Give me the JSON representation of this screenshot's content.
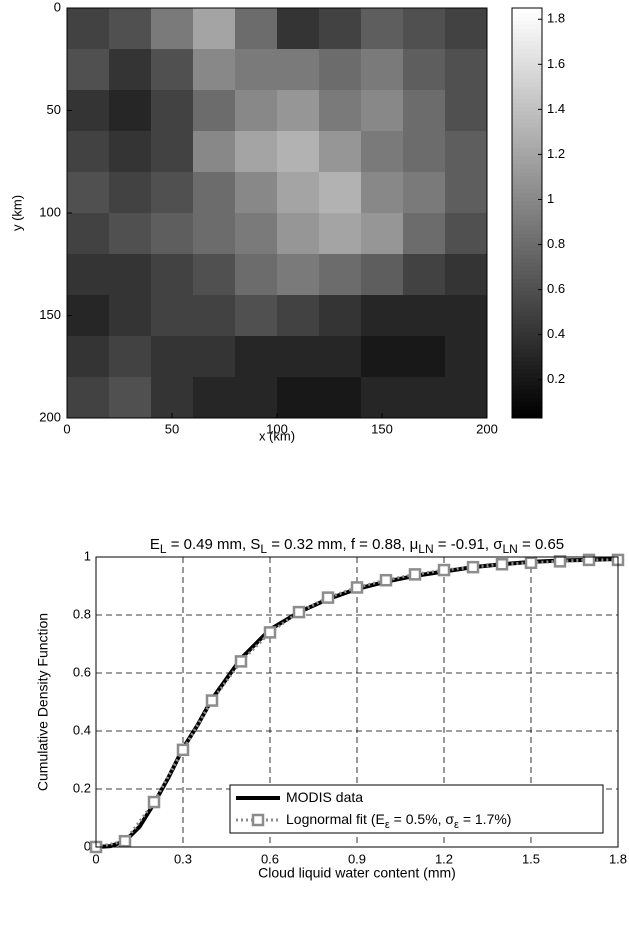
{
  "chart_data": [
    {
      "type": "heatmap",
      "xlabel": "x (km)",
      "ylabel": "y (km)",
      "xlim": [
        0,
        200
      ],
      "ylim": [
        0,
        200
      ],
      "yreverse": true,
      "xticks": [
        0,
        50,
        100,
        150,
        200
      ],
      "yticks": [
        0,
        50,
        100,
        150,
        200
      ],
      "colormap": "gray",
      "clim": [
        0.03,
        1.85
      ],
      "cticks": [
        0.2,
        0.4,
        0.6,
        0.8,
        1,
        1.2,
        1.4,
        1.6,
        1.8
      ],
      "z": [
        [
          0.5,
          0.6,
          0.9,
          1.2,
          0.8,
          0.4,
          0.5,
          0.7,
          0.6,
          0.5
        ],
        [
          0.6,
          0.4,
          0.6,
          1.0,
          0.9,
          0.9,
          0.8,
          0.9,
          0.7,
          0.6
        ],
        [
          0.4,
          0.3,
          0.5,
          0.8,
          1.0,
          1.1,
          0.9,
          1.0,
          0.8,
          0.6
        ],
        [
          0.5,
          0.4,
          0.5,
          1.0,
          1.2,
          1.3,
          1.1,
          0.9,
          0.8,
          0.7
        ],
        [
          0.6,
          0.5,
          0.6,
          0.8,
          1.0,
          1.2,
          1.3,
          1.0,
          0.9,
          0.7
        ],
        [
          0.5,
          0.6,
          0.7,
          0.8,
          0.9,
          1.1,
          1.2,
          1.1,
          0.8,
          0.6
        ],
        [
          0.4,
          0.4,
          0.5,
          0.6,
          0.8,
          0.9,
          0.8,
          0.7,
          0.5,
          0.4
        ],
        [
          0.3,
          0.4,
          0.5,
          0.5,
          0.6,
          0.5,
          0.4,
          0.3,
          0.3,
          0.3
        ],
        [
          0.4,
          0.5,
          0.4,
          0.4,
          0.3,
          0.3,
          0.3,
          0.2,
          0.2,
          0.3
        ],
        [
          0.5,
          0.6,
          0.4,
          0.3,
          0.3,
          0.2,
          0.2,
          0.3,
          0.3,
          0.3
        ]
      ]
    },
    {
      "type": "line",
      "title": [
        "E",
        "L",
        " = 0.49 mm, S",
        "L",
        " = 0.32 mm, f = 0.88, μ",
        "LN",
        " = -0.91, σ",
        "LN",
        " = 0.65"
      ],
      "xlabel": "Cloud liquid water content (mm)",
      "ylabel": "Cumulative Density Function",
      "xlim": [
        0,
        1.8
      ],
      "ylim": [
        0,
        1
      ],
      "xticks": [
        0,
        0.3,
        0.6,
        0.9,
        1.2,
        1.5,
        1.8
      ],
      "yticks": [
        0,
        0.2,
        0.4,
        0.6,
        0.8,
        1
      ],
      "grid": true,
      "legend": "lower right",
      "series": [
        {
          "name": [
            "MODIS data"
          ],
          "color": "#000000",
          "style": "solid",
          "x": [
            0,
            0.05,
            0.1,
            0.15,
            0.2,
            0.25,
            0.3,
            0.35,
            0.4,
            0.45,
            0.5,
            0.55,
            0.6,
            0.65,
            0.7,
            0.8,
            0.9,
            1.0,
            1.1,
            1.2,
            1.3,
            1.4,
            1.5,
            1.6,
            1.7,
            1.8
          ],
          "values": [
            0,
            0.003,
            0.02,
            0.07,
            0.15,
            0.24,
            0.34,
            0.42,
            0.51,
            0.58,
            0.65,
            0.7,
            0.75,
            0.78,
            0.81,
            0.855,
            0.89,
            0.915,
            0.935,
            0.95,
            0.965,
            0.975,
            0.983,
            0.988,
            0.99,
            0.993
          ]
        },
        {
          "name": [
            "Lognormal fit (E",
            "ε",
            " = 0.5%, σ",
            "ε",
            " = 1.7%)"
          ],
          "color": "#8c8c8c",
          "style": "dotted",
          "marker": "square",
          "x": [
            0,
            0.1,
            0.2,
            0.3,
            0.4,
            0.5,
            0.6,
            0.7,
            0.8,
            0.9,
            1.0,
            1.1,
            1.2,
            1.3,
            1.4,
            1.5,
            1.6,
            1.7,
            1.8
          ],
          "values": [
            0,
            0.02,
            0.155,
            0.335,
            0.505,
            0.64,
            0.74,
            0.81,
            0.86,
            0.895,
            0.92,
            0.94,
            0.955,
            0.965,
            0.975,
            0.98,
            0.985,
            0.99,
            0.99
          ]
        }
      ]
    }
  ]
}
